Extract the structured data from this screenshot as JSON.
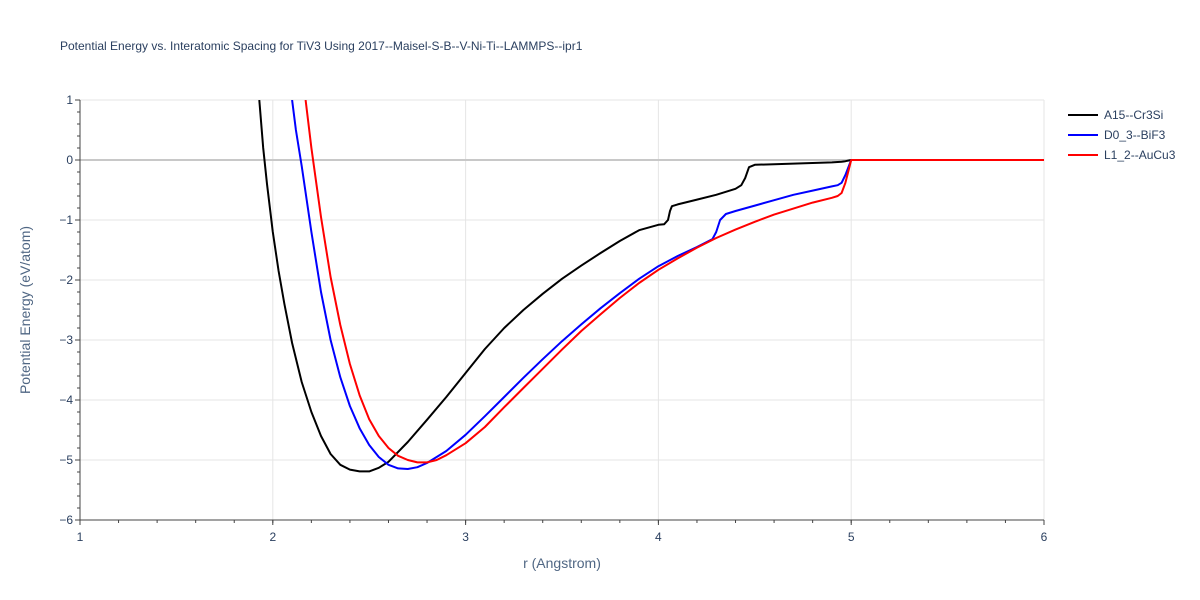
{
  "chart_data": {
    "type": "line",
    "title": "Potential Energy vs. Interatomic Spacing for TiV3 Using 2017--Maisel-S-B--V-Ni-Ti--LAMMPS--ipr1",
    "xlabel": "r (Angstrom)",
    "ylabel": "Potential Energy (eV/atom)",
    "xlim": [
      1,
      6
    ],
    "ylim": [
      -6,
      1
    ],
    "xticks": [
      1,
      2,
      3,
      4,
      5,
      6
    ],
    "yticks": [
      1,
      0,
      -1,
      -2,
      -3,
      -4,
      -5,
      -6
    ],
    "ytick_labels": [
      "1",
      "0",
      "−1",
      "−2",
      "−3",
      "−4",
      "−5",
      "−6"
    ],
    "grid": true,
    "legend_position": "top-right",
    "series": [
      {
        "name": "A15--Cr3Si",
        "color": "#000000",
        "x": [
          1.93,
          1.95,
          1.97,
          2.0,
          2.03,
          2.06,
          2.1,
          2.15,
          2.2,
          2.25,
          2.3,
          2.35,
          2.4,
          2.45,
          2.5,
          2.55,
          2.6,
          2.7,
          2.8,
          2.9,
          3.0,
          3.1,
          3.2,
          3.3,
          3.4,
          3.5,
          3.6,
          3.7,
          3.8,
          3.9,
          4.0,
          4.03,
          4.05,
          4.06,
          4.07,
          4.1,
          4.2,
          4.3,
          4.4,
          4.43,
          4.45,
          4.47,
          4.5,
          4.6,
          4.7,
          4.8,
          4.9,
          4.95,
          4.97,
          5.0,
          5.5,
          6.0
        ],
        "y": [
          1.0,
          0.2,
          -0.4,
          -1.2,
          -1.85,
          -2.4,
          -3.05,
          -3.7,
          -4.2,
          -4.6,
          -4.9,
          -5.08,
          -5.16,
          -5.19,
          -5.19,
          -5.13,
          -5.03,
          -4.7,
          -4.33,
          -3.95,
          -3.55,
          -3.15,
          -2.8,
          -2.5,
          -2.23,
          -1.98,
          -1.76,
          -1.55,
          -1.35,
          -1.17,
          -1.08,
          -1.07,
          -1.0,
          -0.85,
          -0.77,
          -0.74,
          -0.66,
          -0.58,
          -0.48,
          -0.42,
          -0.3,
          -0.12,
          -0.08,
          -0.07,
          -0.06,
          -0.05,
          -0.04,
          -0.03,
          -0.02,
          0.0,
          0.0,
          0.0
        ]
      },
      {
        "name": "D0_3--BiF3",
        "color": "#0000ff",
        "x": [
          2.1,
          2.12,
          2.15,
          2.2,
          2.25,
          2.3,
          2.35,
          2.4,
          2.45,
          2.5,
          2.55,
          2.6,
          2.65,
          2.7,
          2.75,
          2.8,
          2.9,
          3.0,
          3.1,
          3.2,
          3.3,
          3.4,
          3.5,
          3.6,
          3.7,
          3.8,
          3.9,
          4.0,
          4.1,
          4.2,
          4.28,
          4.3,
          4.32,
          4.35,
          4.4,
          4.5,
          4.6,
          4.7,
          4.8,
          4.9,
          4.93,
          4.95,
          4.97,
          5.0,
          5.5,
          6.0
        ],
        "y": [
          1.0,
          0.5,
          -0.1,
          -1.2,
          -2.2,
          -3.0,
          -3.62,
          -4.1,
          -4.47,
          -4.75,
          -4.95,
          -5.08,
          -5.14,
          -5.15,
          -5.12,
          -5.05,
          -4.85,
          -4.58,
          -4.27,
          -3.95,
          -3.63,
          -3.32,
          -3.02,
          -2.74,
          -2.47,
          -2.22,
          -1.98,
          -1.77,
          -1.6,
          -1.45,
          -1.32,
          -1.2,
          -1.0,
          -0.9,
          -0.85,
          -0.76,
          -0.67,
          -0.58,
          -0.51,
          -0.44,
          -0.42,
          -0.38,
          -0.25,
          0.0,
          0.0,
          0.0
        ]
      },
      {
        "name": "L1_2--AuCu3",
        "color": "#ff0000",
        "x": [
          2.17,
          2.2,
          2.25,
          2.3,
          2.35,
          2.4,
          2.45,
          2.5,
          2.55,
          2.6,
          2.65,
          2.7,
          2.75,
          2.8,
          2.85,
          2.9,
          3.0,
          3.1,
          3.2,
          3.3,
          3.4,
          3.5,
          3.6,
          3.7,
          3.8,
          3.9,
          4.0,
          4.1,
          4.2,
          4.3,
          4.4,
          4.5,
          4.6,
          4.7,
          4.8,
          4.9,
          4.93,
          4.95,
          4.97,
          5.0,
          5.5,
          6.0
        ],
        "y": [
          1.0,
          0.2,
          -0.95,
          -1.95,
          -2.75,
          -3.4,
          -3.92,
          -4.32,
          -4.6,
          -4.8,
          -4.93,
          -5.0,
          -5.04,
          -5.04,
          -5.0,
          -4.92,
          -4.72,
          -4.45,
          -4.12,
          -3.8,
          -3.48,
          -3.16,
          -2.85,
          -2.57,
          -2.3,
          -2.05,
          -1.83,
          -1.64,
          -1.46,
          -1.3,
          -1.16,
          -1.03,
          -0.91,
          -0.81,
          -0.71,
          -0.63,
          -0.6,
          -0.55,
          -0.38,
          0.0,
          0.0,
          0.0
        ]
      }
    ]
  }
}
